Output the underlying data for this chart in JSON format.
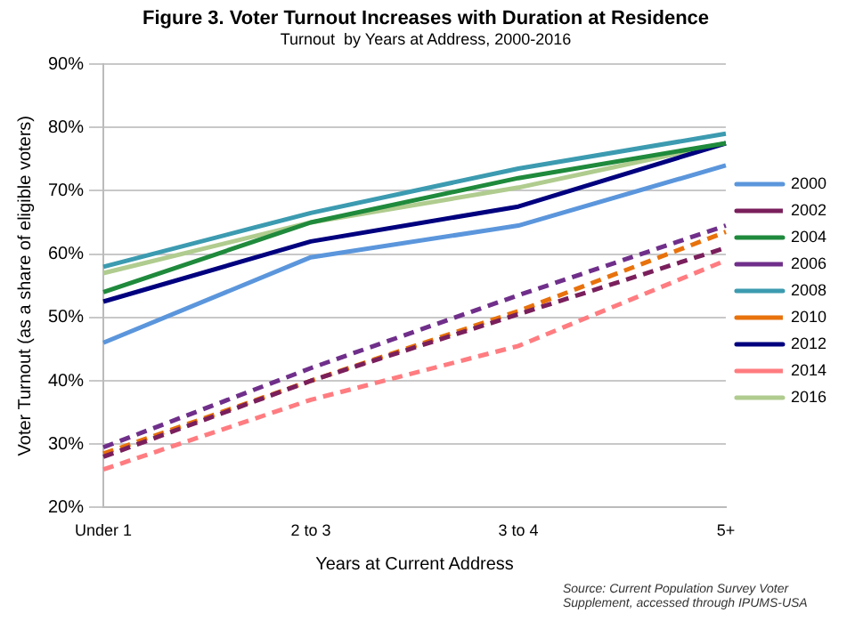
{
  "chart_data": {
    "type": "line",
    "title": "Figure 3. Voter Turnout Increases with Duration at Residence",
    "subtitle": "Turnout  by Years at Address, 2000-2016",
    "xlabel": "Years at Current Address",
    "ylabel": "Voter Turnout (as a share of eligible voters)",
    "categories": [
      "Under 1",
      "2 to 3",
      "3 to 4",
      "5+"
    ],
    "series": [
      {
        "name": "2000",
        "color": "#5b96dc",
        "line_style": "solid",
        "values": [
          46,
          59.5,
          64.5,
          74
        ]
      },
      {
        "name": "2002",
        "color": "#7a1f5c",
        "line_style": "dashed",
        "values": [
          28,
          40,
          50.5,
          61
        ]
      },
      {
        "name": "2004",
        "color": "#1f8a3c",
        "line_style": "solid",
        "values": [
          54,
          65,
          72,
          77.5
        ]
      },
      {
        "name": "2006",
        "color": "#702f8a",
        "line_style": "dashed",
        "values": [
          29.5,
          42,
          53.5,
          64.5
        ]
      },
      {
        "name": "2008",
        "color": "#3c9bb0",
        "line_style": "solid",
        "values": [
          58,
          66.5,
          73.5,
          79
        ]
      },
      {
        "name": "2010",
        "color": "#e8720c",
        "line_style": "dashed",
        "values": [
          28.5,
          40,
          51,
          63.5
        ]
      },
      {
        "name": "2012",
        "color": "#00007f",
        "line_style": "solid",
        "values": [
          52.5,
          62,
          67.5,
          77.5
        ]
      },
      {
        "name": "2014",
        "color": "#ff7c80",
        "line_style": "dashed",
        "values": [
          26,
          37,
          45.5,
          59
        ]
      },
      {
        "name": "2016",
        "color": "#b0cc8f",
        "line_style": "solid",
        "values": [
          57,
          65,
          70.5,
          77.5
        ]
      }
    ],
    "ylim": [
      20,
      90
    ],
    "yticks": [
      {
        "value": 20,
        "label": "20%"
      },
      {
        "value": 30,
        "label": "30%"
      },
      {
        "value": 40,
        "label": "40%"
      },
      {
        "value": 50,
        "label": "50%"
      },
      {
        "value": 60,
        "label": "60%"
      },
      {
        "value": 70,
        "label": "70%"
      },
      {
        "value": 80,
        "label": "80%"
      },
      {
        "value": 90,
        "label": "90%"
      }
    ],
    "grid": "y",
    "legend": "right",
    "marker": "none",
    "annotations": [
      "Source: Current Population Survey Voter Supplement, accessed through IPUMS-USA"
    ]
  }
}
